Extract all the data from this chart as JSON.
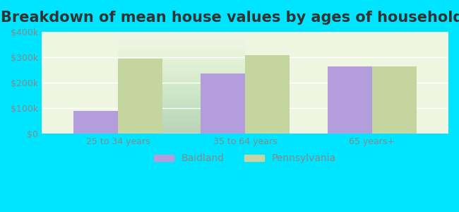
{
  "title": "Breakdown of mean house values by ages of householders",
  "categories": [
    "25 to 34 years",
    "35 to 64 years",
    "65 years+"
  ],
  "baidland_values": [
    90000,
    235000,
    265000
  ],
  "pennsylvania_values": [
    295000,
    308000,
    263000
  ],
  "bar_color_baidland": "#b39ddb",
  "bar_color_pennsylvania": "#c5d5a0",
  "ylim": [
    0,
    400000
  ],
  "yticks": [
    0,
    100000,
    200000,
    300000,
    400000
  ],
  "ytick_labels": [
    "$0",
    "$100k",
    "$200k",
    "$300k",
    "$400k"
  ],
  "background_color": "#00e5ff",
  "plot_bg_start": "#e8f5e9",
  "plot_bg_end": "#f9fbe7",
  "legend_labels": [
    "Baidland",
    "Pennsylvania"
  ],
  "bar_width": 0.35,
  "grid_color": "#ffffff",
  "title_fontsize": 15,
  "tick_fontsize": 9,
  "legend_fontsize": 10
}
